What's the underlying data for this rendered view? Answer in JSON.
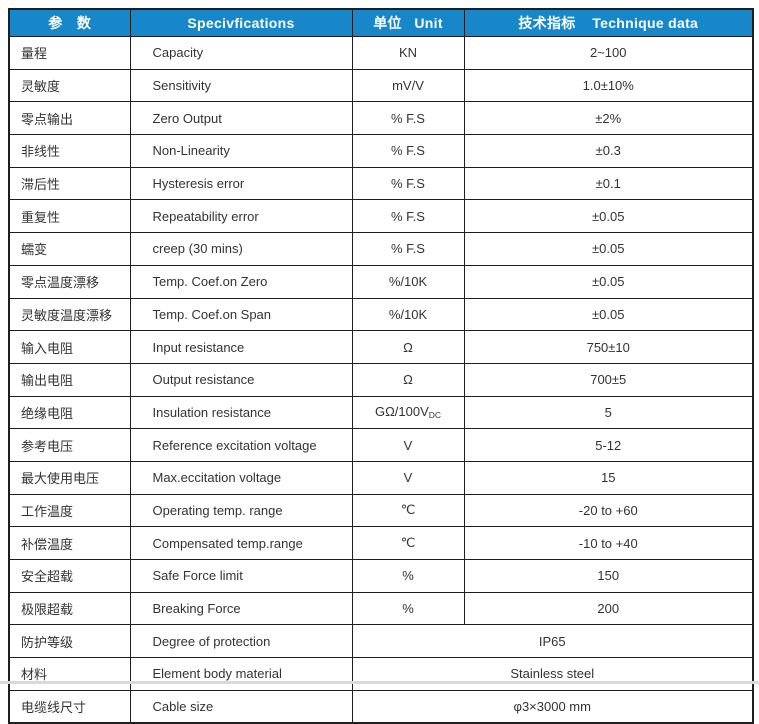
{
  "colors": {
    "header_bg": "#1787C9",
    "header_text": "#ffffff",
    "border": "#1f1f1f",
    "body_text": "#333333"
  },
  "table": {
    "header": {
      "param": "参　数",
      "specifications": "Specivfications",
      "unit": "单位   Unit",
      "technique": "技术指标    Technique data"
    },
    "rows": [
      {
        "cn": "量程",
        "en": "Capacity",
        "unit": "KN",
        "value": "2~100"
      },
      {
        "cn": "灵敏度",
        "en": "Sensitivity",
        "unit": "mV/V",
        "value": "1.0±10%"
      },
      {
        "cn": "零点输出",
        "en": "Zero Output",
        "unit": "% F.S",
        "value": "±2%"
      },
      {
        "cn": "非线性",
        "en": "Non-Linearity",
        "unit": "% F.S",
        "value": "±0.3"
      },
      {
        "cn": "滞后性",
        "en": "Hysteresis error",
        "unit": "% F.S",
        "value": "±0.1"
      },
      {
        "cn": "重复性",
        "en": "Repeatability error",
        "unit": "% F.S",
        "value": "±0.05"
      },
      {
        "cn": "蠕变",
        "en": "creep (30 mins)",
        "unit": "% F.S",
        "value": "±0.05"
      },
      {
        "cn": "零点温度漂移",
        "en": "Temp. Coef.on Zero",
        "unit": "%/10K",
        "value": "±0.05"
      },
      {
        "cn": "灵敏度温度漂移",
        "en": "Temp. Coef.on Span",
        "unit": "%/10K",
        "value": "±0.05"
      },
      {
        "cn": "输入电阻",
        "en": "Input resistance",
        "unit": "Ω",
        "value": "750±10"
      },
      {
        "cn": "输出电阻",
        "en": "Output resistance",
        "unit": "Ω",
        "value": "700±5"
      },
      {
        "cn": "绝缘电阻",
        "en": "Insulation resistance",
        "unit": "GΩ/100V",
        "unit_sub": "DC",
        "value": "5"
      },
      {
        "cn": "参考电压",
        "en": "Reference excitation voltage",
        "unit": "V",
        "value": "5-12"
      },
      {
        "cn": "最大使用电压",
        "en": "Max.eccitation voltage",
        "unit": "V",
        "value": "15"
      },
      {
        "cn": "工作温度",
        "en": "Operating temp. range",
        "unit": "℃",
        "value": "-20 to +60"
      },
      {
        "cn": "补偿温度",
        "en": "Compensated temp.range",
        "unit": "℃",
        "value": "-10 to +40"
      },
      {
        "cn": "安全超载",
        "en": "Safe Force limit",
        "unit": "%",
        "value": "150"
      },
      {
        "cn": "极限超载",
        "en": "Breaking Force",
        "unit": "%",
        "value": "200"
      },
      {
        "cn": "防护等级",
        "en": "Degree of protection",
        "merged": true,
        "value": "IP65"
      },
      {
        "cn": "材料",
        "en": "Element body material",
        "merged": true,
        "value": "Stainless steel"
      },
      {
        "cn": "电缆线尺寸",
        "en": "Cable size",
        "merged": true,
        "value": "φ3×3000 mm"
      }
    ]
  }
}
